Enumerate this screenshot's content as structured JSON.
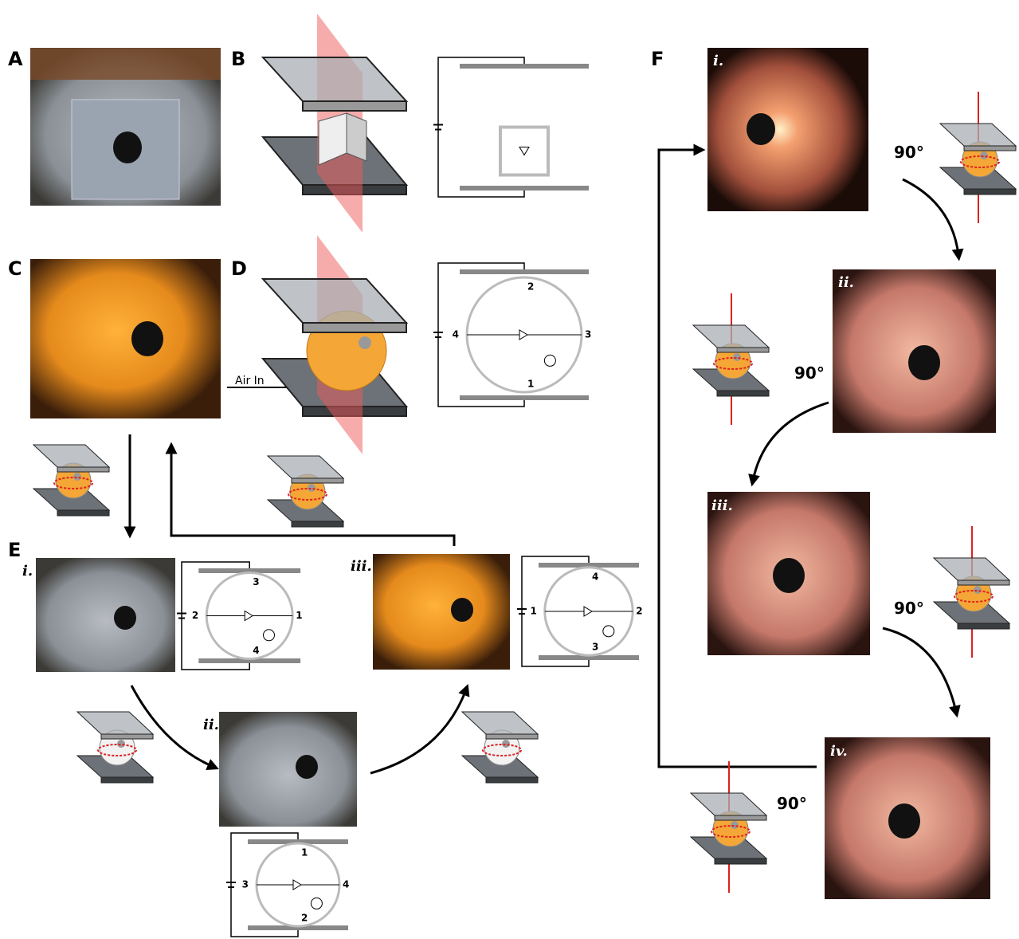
{
  "panel_labels": [
    "A",
    "B",
    "C",
    "D",
    "E",
    "F"
  ],
  "sublabels_e": [
    "i.",
    "ii.",
    "iii."
  ],
  "sublabels_f": [
    "i.",
    "ii.",
    "iii.",
    "iv."
  ],
  "rotation_labels": [
    "90°",
    "90°",
    "90°",
    "90°"
  ],
  "air_in": "Air In",
  "circuits": {
    "d": [
      "2",
      "4",
      "3",
      "1"
    ],
    "e_i": [
      "3",
      "2",
      "1",
      "4"
    ],
    "e_ii": [
      "1",
      "3",
      "4",
      "2"
    ],
    "e_iii": [
      "4",
      "1",
      "2",
      "3"
    ]
  }
}
